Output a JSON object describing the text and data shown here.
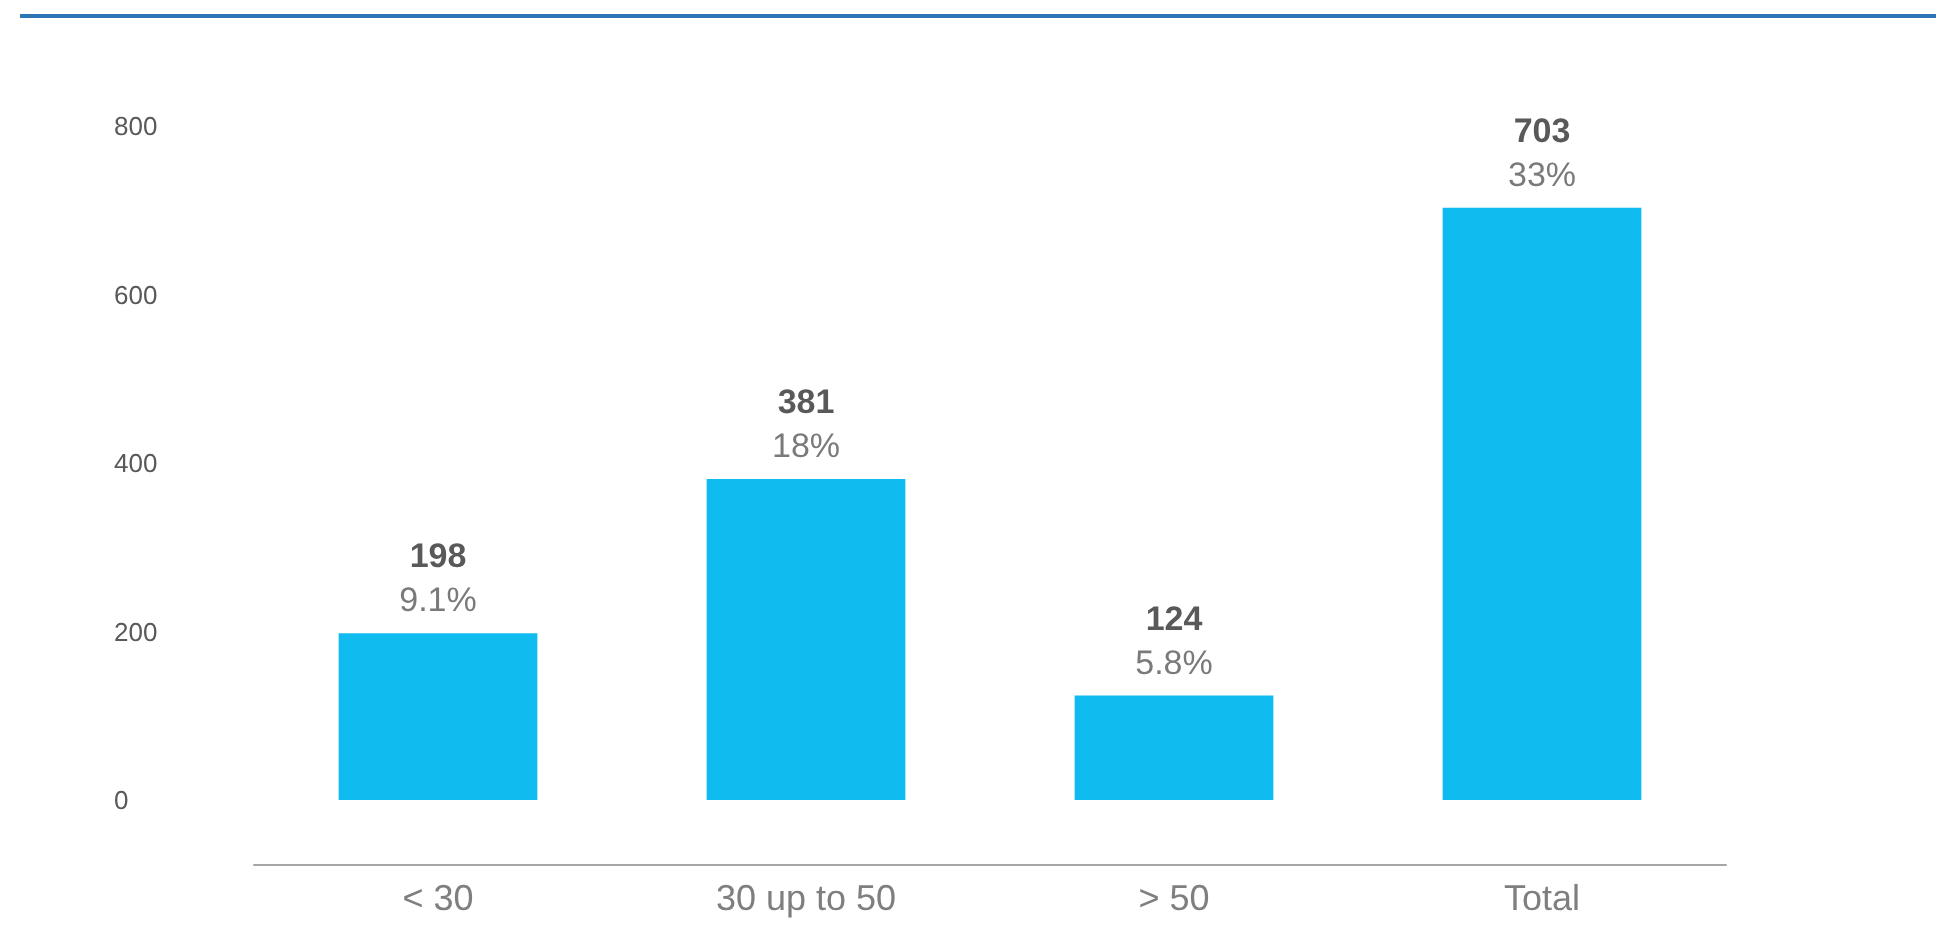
{
  "chart_data": {
    "type": "bar",
    "categories": [
      "< 30",
      "30 up to 50",
      "> 50",
      "Total"
    ],
    "values": [
      198,
      381,
      124,
      703
    ],
    "color": "#0fbbef",
    "ylim": [
      0,
      800
    ],
    "yticks": [
      0,
      200,
      400,
      600,
      800
    ],
    "grid": false,
    "data_labels": true,
    "annotations": [
      {
        "text": "9.1%",
        "x": "< 30",
        "y": 198
      },
      {
        "text": "18%",
        "x": "30 up to 50",
        "y": 381
      },
      {
        "text": "5.8%",
        "x": "> 50",
        "y": 124
      },
      {
        "text": "33%",
        "x": "Total",
        "y": 703
      }
    ]
  }
}
